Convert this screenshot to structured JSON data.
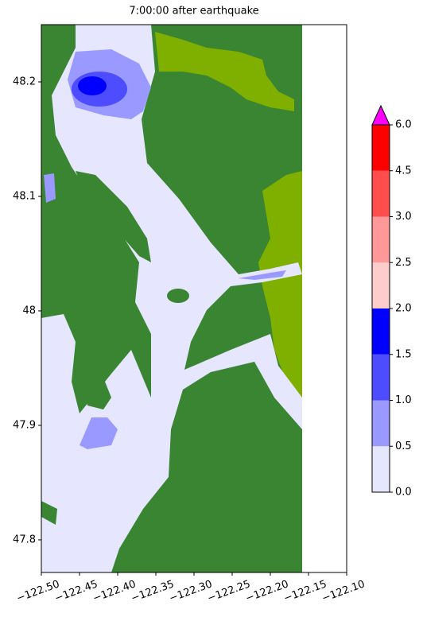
{
  "chart_data": {
    "type": "map",
    "title": "7:00:00 after earthquake",
    "xlim": [
      -122.5,
      -122.1
    ],
    "ylim": [
      47.7715,
      48.25
    ],
    "xticks": [
      {
        "value": -122.5,
        "label": "−122.50"
      },
      {
        "value": -122.45,
        "label": "−122.45"
      },
      {
        "value": -122.4,
        "label": "−122.40"
      },
      {
        "value": -122.35,
        "label": "−122.35"
      },
      {
        "value": -122.3,
        "label": "−122.30"
      },
      {
        "value": -122.25,
        "label": "−122.25"
      },
      {
        "value": -122.2,
        "label": "−122.20"
      },
      {
        "value": -122.15,
        "label": "−122.15"
      },
      {
        "value": -122.1,
        "label": "−122.10"
      }
    ],
    "yticks": [
      47.8,
      47.9,
      48.0,
      48.1,
      48.2
    ],
    "colorbar": {
      "levels": [
        {
          "value": 0,
          "label": "0.0"
        },
        0.5,
        {
          "value": 1,
          "label": "1.0"
        },
        1.5,
        {
          "value": 2,
          "label": "2.0"
        },
        2.5,
        {
          "value": 3,
          "label": "3.0"
        },
        4.5,
        {
          "value": 6,
          "label": "6.0"
        }
      ],
      "colors": [
        "#e6e6ff",
        "#9999ff",
        "#4d4dff",
        "#0000ff",
        "#ffcccc",
        "#ff9999",
        "#ff4d4d",
        "#ff0000"
      ],
      "extend_color": "#ff00ff"
    }
  }
}
